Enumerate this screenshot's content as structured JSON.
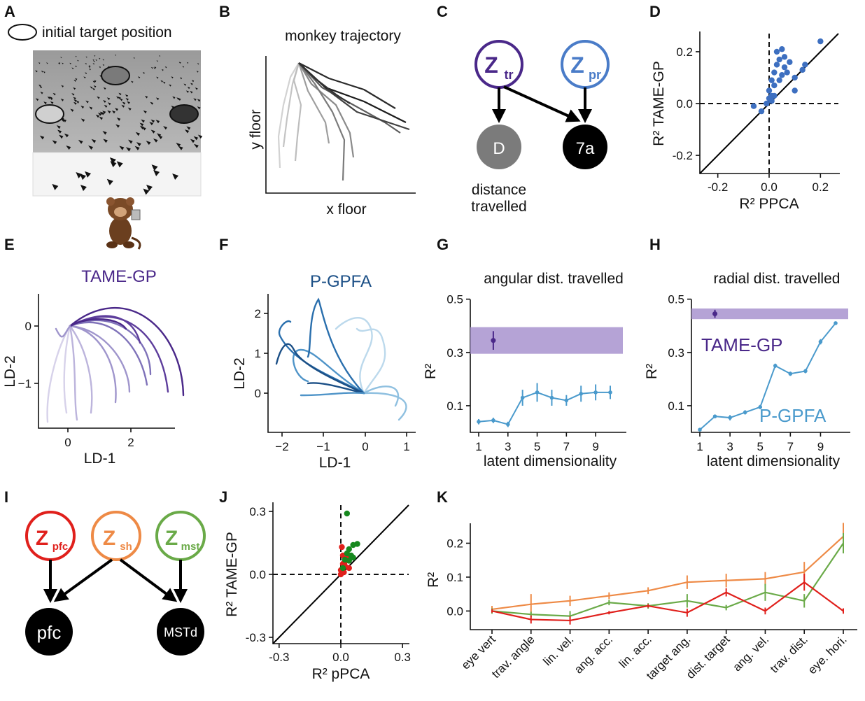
{
  "panels": {
    "a": {
      "label": "A",
      "legend": "initial target position"
    },
    "b": {
      "label": "B",
      "title": "monkey trajectory",
      "xlabel": "x floor",
      "ylabel": "y floor"
    },
    "c": {
      "label": "C",
      "node_z": "Z",
      "sub_tr": "tr",
      "sub_pr": "pr",
      "node_d": "D",
      "node_7a": "7a",
      "caption1": "distance",
      "caption2": "travelled"
    },
    "d": {
      "label": "D"
    },
    "e": {
      "label": "E"
    },
    "f": {
      "label": "F"
    },
    "g": {
      "label": "G"
    },
    "h": {
      "label": "H"
    },
    "i": {
      "label": "I",
      "node_z": "Z",
      "sub_pfc": "pfc",
      "sub_sh": "sh",
      "sub_mst": "mst",
      "node_pfc": "pfc",
      "node_mstd": "MSTd"
    },
    "j": {
      "label": "J"
    },
    "k": {
      "label": "K"
    }
  },
  "chart_data": [
    {
      "panel": "D",
      "type": "scatter",
      "xlabel": "R² PPCA",
      "ylabel": "R² TAME-GP",
      "xticks": [
        "-0.2",
        "0.0",
        "0.2"
      ],
      "yticks": [
        "0.2",
        "0.0",
        "-0.2"
      ],
      "xlim": [
        -0.27,
        0.27
      ],
      "ylim": [
        -0.27,
        0.27
      ],
      "color": "#3d6fc0",
      "points": [
        [
          -0.06,
          -0.01
        ],
        [
          -0.03,
          -0.03
        ],
        [
          -0.01,
          0.0
        ],
        [
          0.0,
          0.02
        ],
        [
          0.0,
          0.05
        ],
        [
          0.01,
          0.03
        ],
        [
          0.01,
          0.09
        ],
        [
          0.02,
          0.07
        ],
        [
          0.02,
          0.12
        ],
        [
          0.02,
          0.03
        ],
        [
          0.03,
          0.15
        ],
        [
          0.03,
          0.2
        ],
        [
          0.04,
          0.09
        ],
        [
          0.04,
          0.17
        ],
        [
          0.05,
          0.11
        ],
        [
          0.05,
          0.21
        ],
        [
          0.06,
          0.14
        ],
        [
          0.06,
          0.18
        ],
        [
          0.07,
          0.12
        ],
        [
          0.08,
          0.16
        ],
        [
          0.1,
          0.1
        ],
        [
          0.1,
          0.05
        ],
        [
          0.13,
          0.13
        ],
        [
          0.14,
          0.15
        ],
        [
          0.2,
          0.24
        ],
        [
          0.01,
          0.01
        ]
      ]
    },
    {
      "panel": "E",
      "type": "line",
      "title": "TAME-GP",
      "xlabel": "LD-1",
      "ylabel": "LD-2",
      "xticks": [
        "0",
        "2"
      ],
      "yticks": [
        "0",
        "−1"
      ],
      "series_colors": [
        "#d7d2ea",
        "#bcb4dc",
        "#9f95cc",
        "#7f72b9",
        "#5d3d9c",
        "#4a2889"
      ]
    },
    {
      "panel": "F",
      "type": "line",
      "title": "P-GPFA",
      "xlabel": "LD-1",
      "ylabel": "LD-2",
      "xticks": [
        "−2",
        "−1",
        "0",
        "1"
      ],
      "yticks": [
        "2",
        "1",
        "0"
      ],
      "series_colors": [
        "#bcd9ec",
        "#8fc0e0",
        "#4f94c8",
        "#2a6fad",
        "#1b4f86"
      ]
    },
    {
      "panel": "G",
      "type": "line",
      "title": "angular dist. travelled",
      "xlabel": "latent dimensionality",
      "ylabel": "R²",
      "xticks": [
        "1",
        "3",
        "5",
        "7",
        "9"
      ],
      "yticks": [
        "0.5",
        "0.3",
        "0.1"
      ],
      "ylim": [
        0.0,
        0.52
      ],
      "x": [
        1,
        2,
        3,
        4,
        5,
        6,
        7,
        8,
        9,
        10
      ],
      "series": [
        {
          "name": "P-GPFA",
          "color": "#4a9acc",
          "values": [
            0.04,
            0.045,
            0.03,
            0.13,
            0.15,
            0.13,
            0.12,
            0.145,
            0.15,
            0.15
          ],
          "err": [
            0.01,
            0.01,
            0.01,
            0.03,
            0.035,
            0.03,
            0.02,
            0.03,
            0.03,
            0.025
          ]
        }
      ],
      "band": {
        "name": "TAME-GP",
        "color": "#a893cf",
        "low": 0.295,
        "high": 0.395,
        "point_x": 2,
        "point_y": 0.345,
        "point_err": 0.035
      }
    },
    {
      "panel": "H",
      "type": "line",
      "title": "radial dist. travelled",
      "xlabel": "latent dimensionality",
      "ylabel": "R²",
      "xticks": [
        "1",
        "3",
        "5",
        "7",
        "9"
      ],
      "yticks": [
        "0.5",
        "0.3",
        "0.1"
      ],
      "ylim": [
        0.0,
        0.52
      ],
      "legend": [
        "TAME-GP",
        "P-GPFA"
      ],
      "x": [
        1,
        2,
        3,
        4,
        5,
        6,
        7,
        8,
        9,
        10
      ],
      "series": [
        {
          "name": "P-GPFA",
          "color": "#4a9acc",
          "values": [
            0.01,
            0.06,
            0.055,
            0.075,
            0.095,
            0.25,
            0.22,
            0.23,
            0.34,
            0.41
          ],
          "err": [
            0.005,
            0.005,
            0.01,
            0.008,
            0.008,
            0.008,
            0.008,
            0.008,
            0.01,
            0.005
          ]
        }
      ],
      "band": {
        "name": "TAME-GP",
        "color": "#a893cf",
        "low": 0.425,
        "high": 0.465,
        "point_x": 2,
        "point_y": 0.445,
        "point_err": 0.015
      }
    },
    {
      "panel": "J",
      "type": "scatter",
      "xlabel": "R² pPCA",
      "ylabel": "R² TAME-GP",
      "xticks": [
        "-0.3",
        "0.0",
        "0.3"
      ],
      "yticks": [
        "0.3",
        "0.0",
        "-0.3"
      ],
      "xlim": [
        -0.33,
        0.33
      ],
      "ylim": [
        -0.33,
        0.33
      ],
      "series": [
        {
          "name": "pfc",
          "color": "#e0201c",
          "points": [
            [
              0.0,
              0.02
            ],
            [
              0.01,
              0.05
            ],
            [
              0.02,
              0.06
            ],
            [
              0.01,
              0.09
            ],
            [
              0.03,
              0.08
            ],
            [
              0.04,
              0.03
            ],
            [
              0.005,
              0.13
            ],
            [
              0.02,
              0.04
            ],
            [
              0.0,
              0.0
            ],
            [
              0.015,
              0.01
            ]
          ]
        },
        {
          "name": "mst",
          "color": "#16881e",
          "points": [
            [
              0.03,
              0.29
            ],
            [
              0.06,
              0.14
            ],
            [
              0.08,
              0.145
            ],
            [
              0.04,
              0.12
            ],
            [
              0.03,
              0.1
            ],
            [
              0.05,
              0.09
            ],
            [
              0.02,
              0.07
            ],
            [
              0.04,
              0.065
            ],
            [
              0.06,
              0.08
            ],
            [
              0.01,
              0.03
            ]
          ]
        }
      ]
    },
    {
      "panel": "K",
      "type": "line",
      "ylabel": "R²",
      "categories": [
        "eye vert",
        "trav. angle",
        "lin. vel.",
        "ang. acc.",
        "lin. acc.",
        "target ang.",
        "dist. target",
        "ang. vel.",
        "trav. dist.",
        "eye. hori."
      ],
      "yticks": [
        "0.2",
        "0.1",
        "0.0"
      ],
      "ylim": [
        -0.055,
        0.265
      ],
      "series": [
        {
          "name": "sh",
          "color": "#ee8a46",
          "values": [
            0.005,
            0.02,
            0.03,
            0.045,
            0.06,
            0.085,
            0.09,
            0.095,
            0.115,
            0.22
          ],
          "err": [
            0.01,
            0.03,
            0.015,
            0.01,
            0.01,
            0.02,
            0.02,
            0.02,
            0.03,
            0.04
          ]
        },
        {
          "name": "mst",
          "color": "#6aaa48",
          "values": [
            0.0,
            -0.01,
            -0.015,
            0.025,
            0.015,
            0.03,
            0.01,
            0.055,
            0.03,
            0.2
          ],
          "err": [
            0.008,
            0.008,
            0.015,
            0.008,
            0.008,
            0.02,
            0.008,
            0.025,
            0.02,
            0.03
          ]
        },
        {
          "name": "pfc",
          "color": "#e0201c",
          "values": [
            0.0,
            -0.025,
            -0.028,
            -0.005,
            0.015,
            -0.005,
            0.055,
            0.0,
            0.085,
            0.0
          ],
          "err": [
            0.005,
            0.012,
            0.012,
            0.005,
            0.005,
            0.012,
            0.012,
            0.01,
            0.025,
            0.008
          ]
        }
      ]
    }
  ]
}
